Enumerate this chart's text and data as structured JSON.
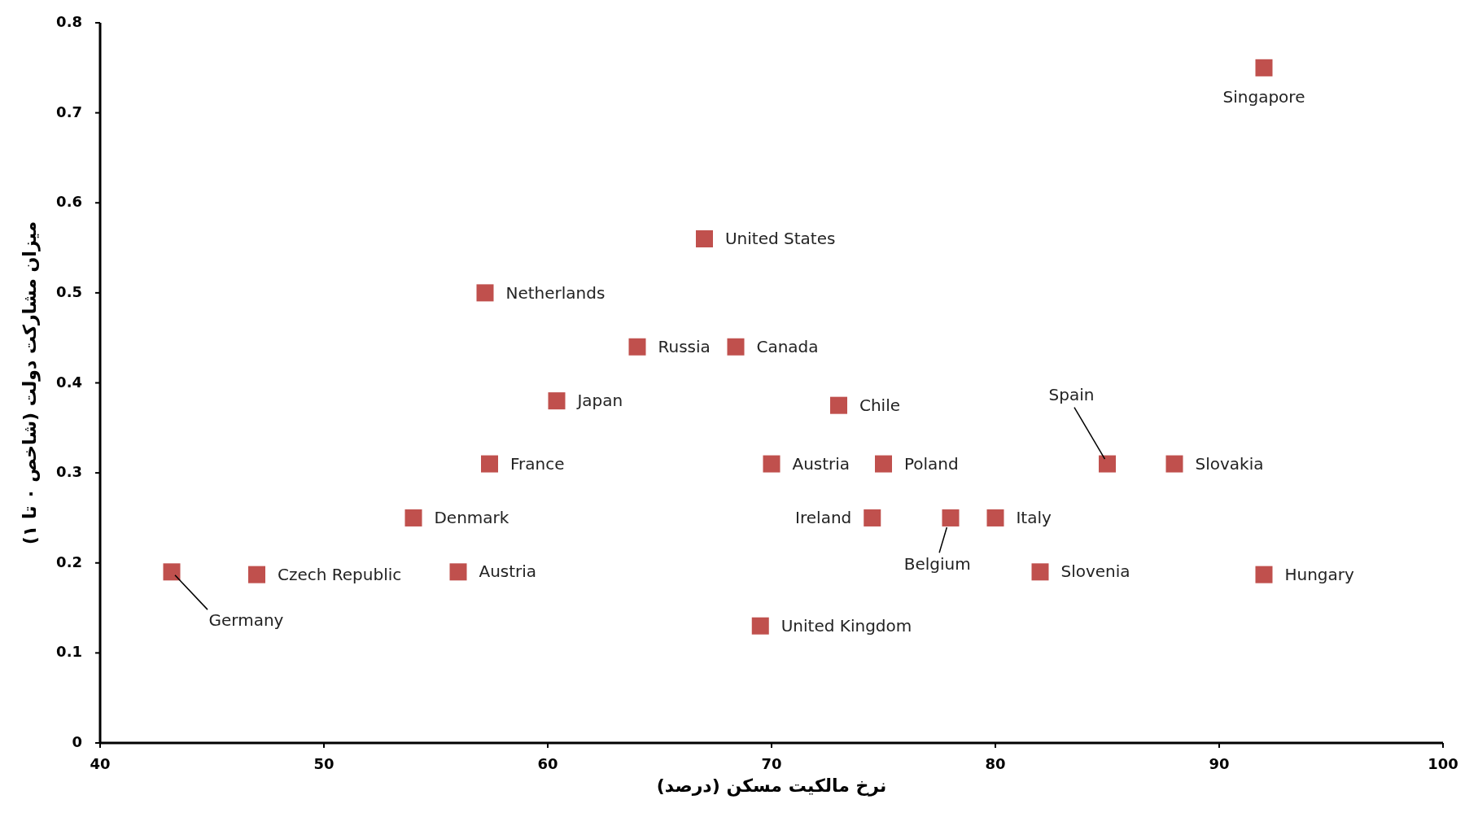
{
  "chart_data": {
    "type": "scatter",
    "xlabel": "نرخ مالکیت مسکن (درصد)",
    "ylabel": "میزان مشارکت دولت (شاخص ۰ تا ۱)",
    "xlim": [
      40,
      100
    ],
    "xticks": [
      40,
      50,
      60,
      70,
      80,
      90,
      100
    ],
    "ylim": [
      0,
      0.8
    ],
    "yticks": [
      0,
      0.1,
      0.2,
      0.3,
      0.4,
      0.5,
      0.6,
      0.7,
      0.8
    ],
    "marker": "square",
    "series": [
      {
        "color": "#c0504d",
        "x": [
          92,
          67,
          57.2,
          64,
          68.4,
          60.4,
          73,
          57.4,
          70,
          75,
          85,
          88,
          54,
          74.5,
          78,
          80,
          43.2,
          47,
          56,
          82,
          92,
          69.5
        ],
        "values": [
          0.75,
          0.56,
          0.5,
          0.44,
          0.44,
          0.38,
          0.375,
          0.31,
          0.31,
          0.31,
          0.31,
          0.31,
          0.25,
          0.25,
          0.25,
          0.25,
          0.19,
          0.187,
          0.19,
          0.19,
          0.187,
          0.13
        ]
      }
    ],
    "annotations": [
      {
        "text": "Singapore",
        "x": 92,
        "y": 0.75
      },
      {
        "text": "United States",
        "x": 67,
        "y": 0.56
      },
      {
        "text": "Netherlands",
        "x": 57.2,
        "y": 0.5
      },
      {
        "text": "Russia",
        "x": 64,
        "y": 0.44
      },
      {
        "text": "Canada",
        "x": 68.4,
        "y": 0.44
      },
      {
        "text": "Japan",
        "x": 60.4,
        "y": 0.38
      },
      {
        "text": "Chile",
        "x": 73,
        "y": 0.375
      },
      {
        "text": "France",
        "x": 57.4,
        "y": 0.31
      },
      {
        "text": "Austria",
        "x": 70,
        "y": 0.31
      },
      {
        "text": "Poland",
        "x": 75,
        "y": 0.31
      },
      {
        "text": "Spain",
        "x": 85,
        "y": 0.31
      },
      {
        "text": "Slovakia",
        "x": 88,
        "y": 0.31
      },
      {
        "text": "Denmark",
        "x": 54,
        "y": 0.25
      },
      {
        "text": "Ireland",
        "x": 74.5,
        "y": 0.25
      },
      {
        "text": "Belgium",
        "x": 78,
        "y": 0.25
      },
      {
        "text": "Italy",
        "x": 80,
        "y": 0.25
      },
      {
        "text": "Germany",
        "x": 43.2,
        "y": 0.19
      },
      {
        "text": "Czech Republic",
        "x": 47,
        "y": 0.187
      },
      {
        "text": "Austria",
        "x": 56,
        "y": 0.19
      },
      {
        "text": "Slovenia",
        "x": 82,
        "y": 0.19
      },
      {
        "text": "Hungary",
        "x": 92,
        "y": 0.187
      },
      {
        "text": "United Kingdom",
        "x": 69.5,
        "y": 0.13
      }
    ]
  }
}
